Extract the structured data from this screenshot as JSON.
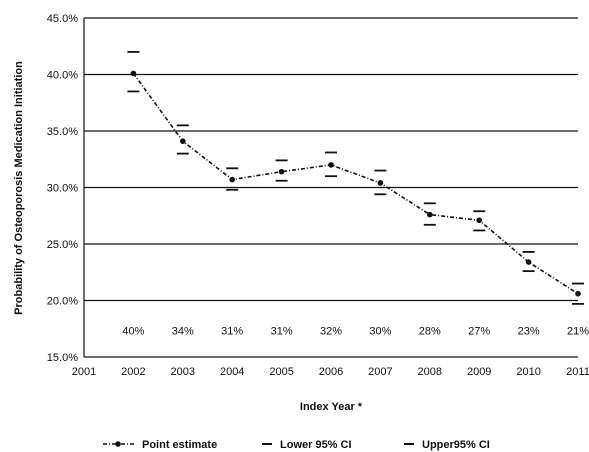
{
  "chart_data": {
    "type": "line",
    "xlabel": "Index Year *",
    "ylabel": "Probability of Osteoporosis Medication Initiation",
    "xlim": [
      2001,
      2011
    ],
    "ylim": [
      15,
      45
    ],
    "x_ticks": [
      "2001",
      "2002",
      "2003",
      "2004",
      "2005",
      "2006",
      "2007",
      "2008",
      "2009",
      "2010",
      "2011"
    ],
    "y_ticks": [
      "15.0%",
      "20.0%",
      "25.0%",
      "30.0%",
      "35.0%",
      "40.0%",
      "45.0%"
    ],
    "grid": "horizontal",
    "legend_placement": "bottom",
    "x": [
      2002,
      2003,
      2004,
      2005,
      2006,
      2007,
      2008,
      2009,
      2010,
      2011
    ],
    "series": [
      {
        "name": "Point estimate",
        "values": [
          40.1,
          34.1,
          30.7,
          31.4,
          32.0,
          30.4,
          27.6,
          27.1,
          23.4,
          20.6
        ]
      },
      {
        "name": "Lower 95% CI",
        "values": [
          38.5,
          33.0,
          29.8,
          30.6,
          31.0,
          29.4,
          26.7,
          26.2,
          22.6,
          19.7
        ]
      },
      {
        "name": "Upper95% CI",
        "values": [
          42.0,
          35.5,
          31.7,
          32.4,
          33.1,
          31.5,
          28.6,
          27.9,
          24.3,
          21.5
        ]
      }
    ],
    "data_labels": [
      "40%",
      "34%",
      "31%",
      "31%",
      "32%",
      "30%",
      "28%",
      "27%",
      "23%",
      "21%"
    ],
    "colors": {
      "line": "#111111",
      "grid": "#111111",
      "ci_marker": "#111111"
    }
  }
}
